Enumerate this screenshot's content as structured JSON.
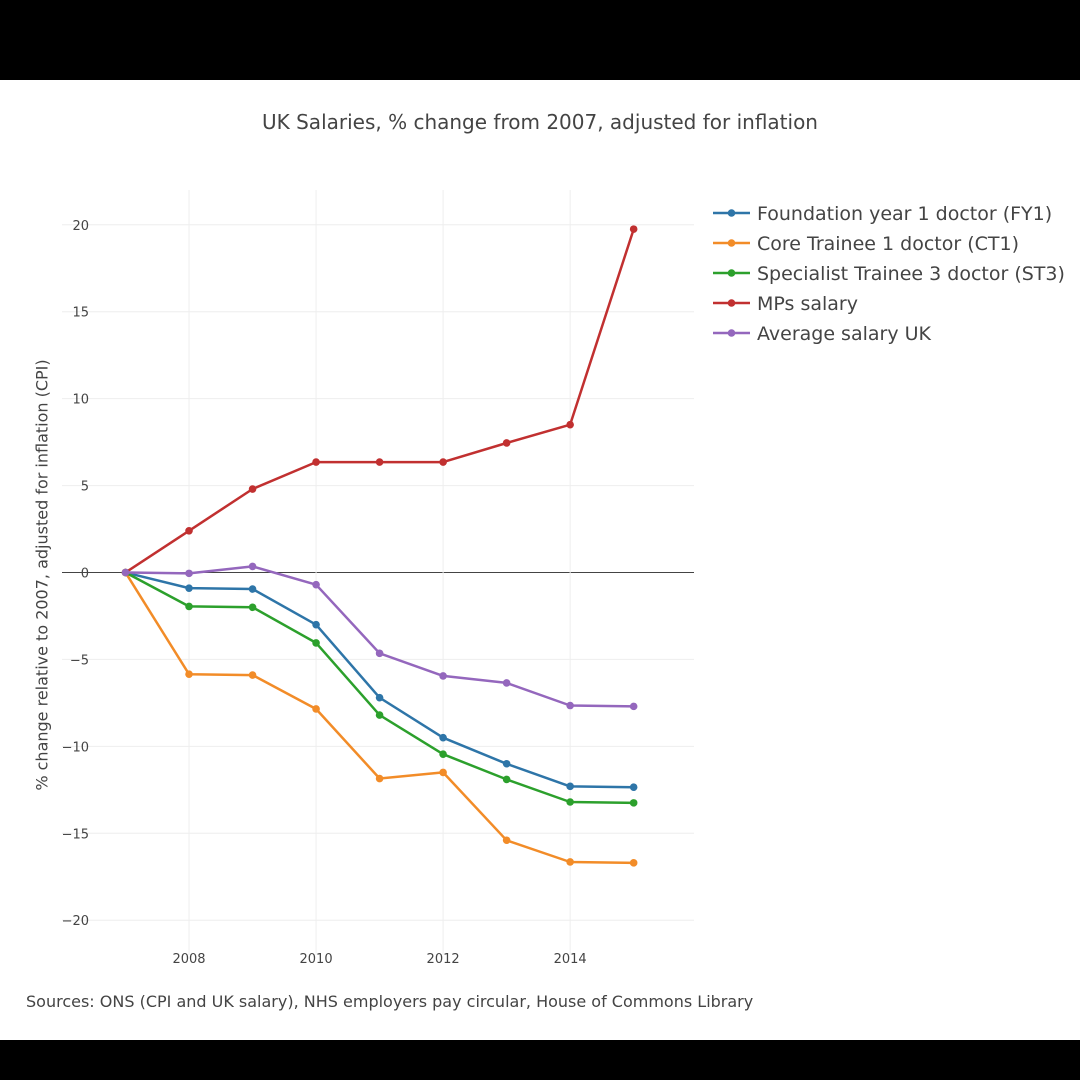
{
  "chart_data": {
    "type": "line",
    "title": "UK Salaries, % change from 2007, adjusted for inflation",
    "ylabel": "% change relative to 2007, adjusted for inflation  (CPI)",
    "xlabel": "",
    "source": "Sources: ONS (CPI and UK salary), NHS employers pay circular, House of Commons Library",
    "x": [
      2007,
      2008,
      2009,
      2010,
      2011,
      2012,
      2013,
      2014,
      2015
    ],
    "xlim": [
      2006.0,
      2015.95
    ],
    "ylim": [
      -22,
      22
    ],
    "x_ticks": [
      2008,
      2010,
      2012,
      2014
    ],
    "y_ticks": [
      20,
      15,
      10,
      5,
      0,
      -5,
      -10,
      -15,
      -20
    ],
    "y_tick_labels": [
      "20",
      "15",
      "10",
      "5",
      "0",
      "−5",
      "−10",
      "−15",
      "−20"
    ],
    "grid": true,
    "legend_position": "right",
    "series": [
      {
        "name": "Foundation year 1 doctor (FY1)",
        "color": "#2e75a8",
        "values": [
          0,
          -0.9,
          -0.95,
          -3.0,
          -7.2,
          -9.5,
          -11.0,
          -12.3,
          -12.35
        ]
      },
      {
        "name": "Core Trainee 1 doctor (CT1)",
        "color": "#f28c28",
        "values": [
          0,
          -5.85,
          -5.9,
          -7.85,
          -11.85,
          -11.5,
          -15.4,
          -16.65,
          -16.7
        ]
      },
      {
        "name": "Specialist Trainee 3 doctor (ST3)",
        "color": "#2ca02c",
        "values": [
          0,
          -1.95,
          -2.0,
          -4.05,
          -8.2,
          -10.45,
          -11.9,
          -13.2,
          -13.25
        ]
      },
      {
        "name": "MPs salary",
        "color": "#c13030",
        "values": [
          0,
          2.4,
          4.8,
          6.35,
          6.35,
          6.35,
          7.45,
          8.5,
          19.75
        ]
      },
      {
        "name": "Average  salary UK",
        "color": "#9467bd",
        "values": [
          0,
          -0.05,
          0.35,
          -0.7,
          -4.65,
          -5.95,
          -6.35,
          -7.65,
          -7.7
        ]
      }
    ]
  }
}
